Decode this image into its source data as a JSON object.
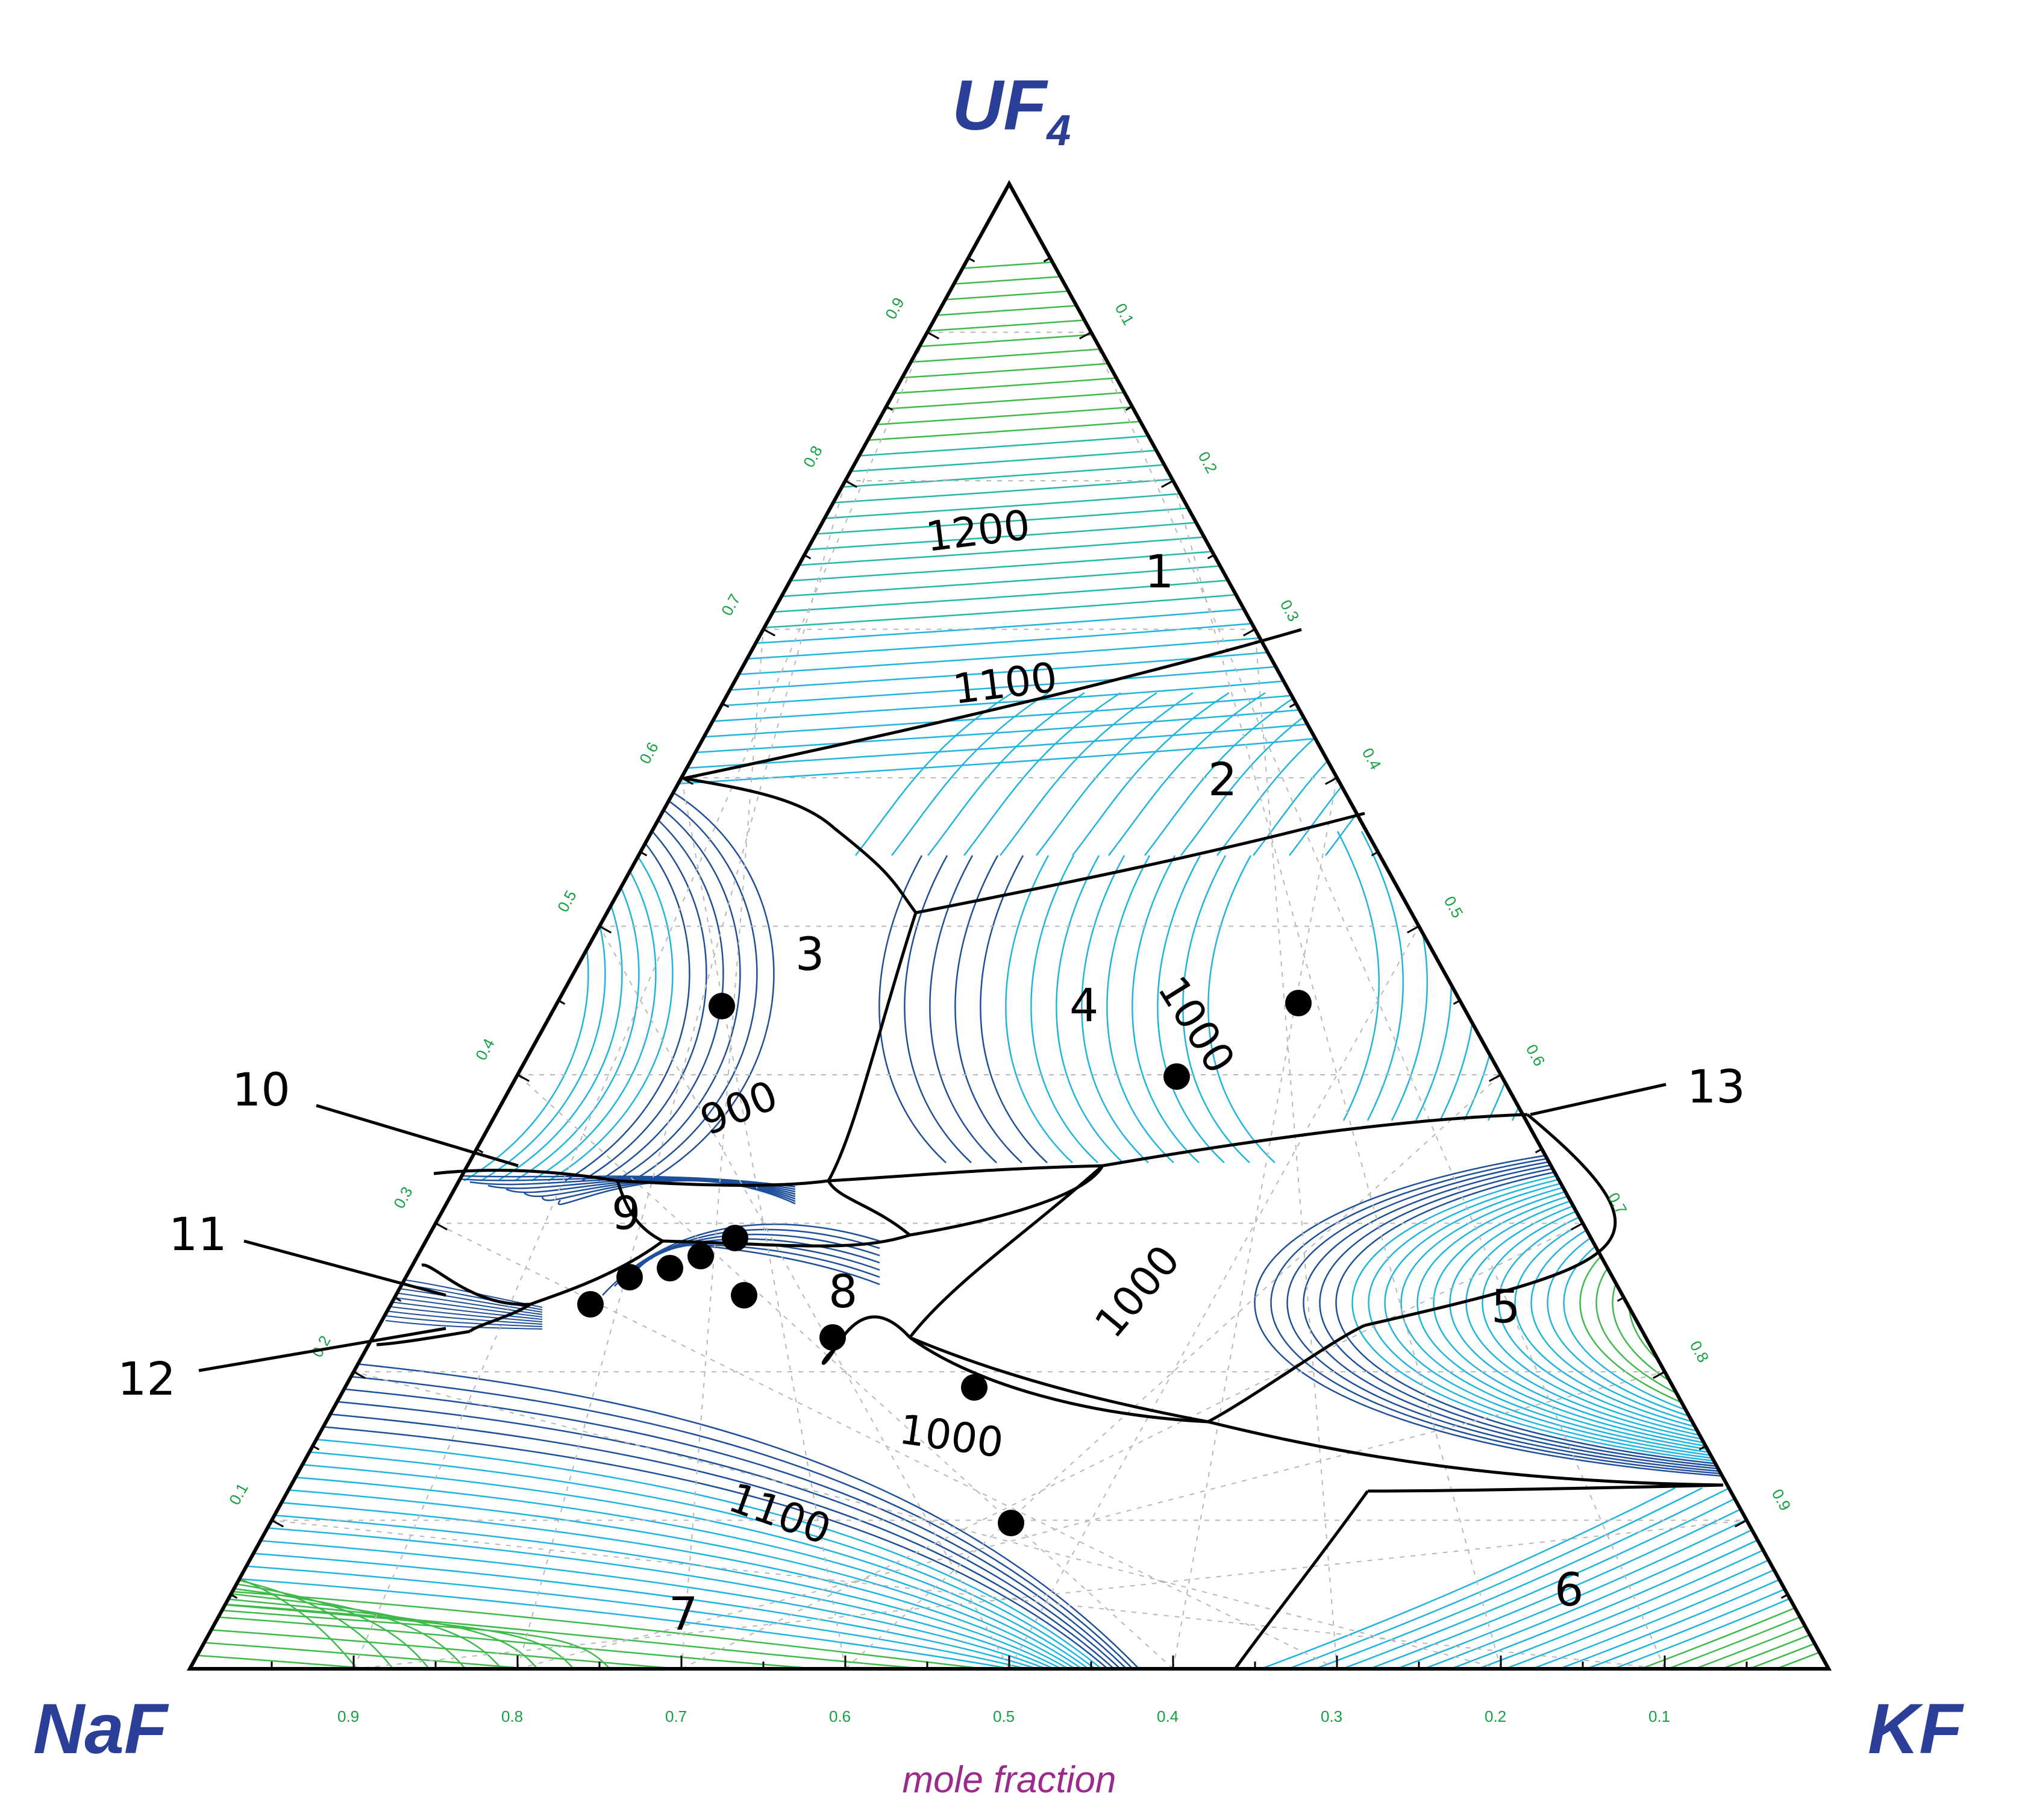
{
  "components": {
    "top": "UF",
    "top_subscript": "4",
    "left": "NaF",
    "right": "KF"
  },
  "axis_label": "mole fraction",
  "ticks": [
    "0.1",
    "0.2",
    "0.3",
    "0.4",
    "0.5",
    "0.6",
    "0.7",
    "0.8",
    "0.9"
  ],
  "region_labels": [
    "1",
    "2",
    "3",
    "4",
    "5",
    "6",
    "7",
    "8",
    "9",
    "10",
    "11",
    "12",
    "13"
  ],
  "isotherm_labels": {
    "t1200": "1200",
    "t1100_upper": "1100",
    "t1000_region4": "1000",
    "t900": "900",
    "t1000_region5": "1000",
    "t1000_region7": "1000",
    "t1100_region7": "1100"
  },
  "colors": {
    "frame": "#000000",
    "corner_labels": "#2b3f99",
    "ticks": "#16a043",
    "axis_label": "#9b2a8c",
    "isotherm_hot": "#3dba4a",
    "isotherm_mid": "#1fb4e0",
    "isotherm_cool": "#1d4f9a"
  }
}
